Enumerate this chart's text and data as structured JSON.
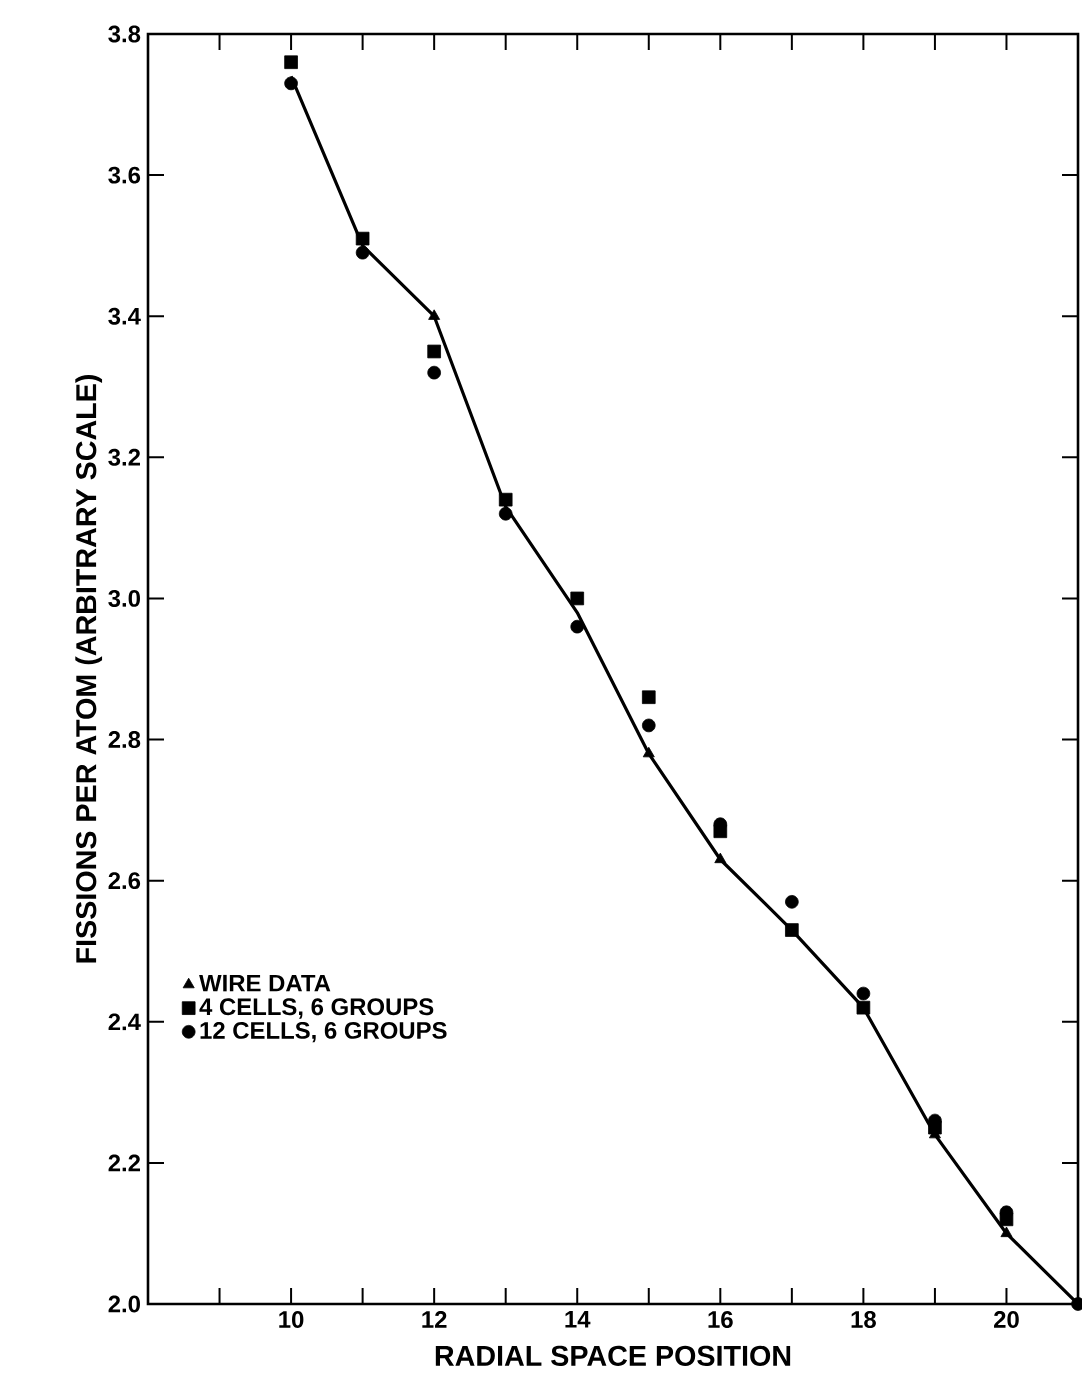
{
  "chart_data": {
    "type": "scatter",
    "xlabel": "RADIAL SPACE POSITION",
    "ylabel": "FISSIONS PER ATOM (ARBITRARY SCALE)",
    "xlim": [
      8,
      21
    ],
    "ylim": [
      2.0,
      3.8
    ],
    "xticks": [
      {
        "value": 9,
        "label": null
      },
      10,
      {
        "value": 11,
        "label": null
      },
      12,
      {
        "value": 13,
        "label": null
      },
      14,
      {
        "value": 15,
        "label": null
      },
      16,
      {
        "value": 17,
        "label": null
      },
      18,
      {
        "value": 19,
        "label": null
      },
      20
    ],
    "yticks": [
      {
        "value": 2,
        "label": "2.0"
      },
      2.2,
      2.4,
      2.6,
      2.8,
      {
        "value": 3,
        "label": "3.0"
      },
      3.2,
      3.4,
      3.6,
      3.8
    ],
    "grid": false,
    "legend": "bottom left",
    "series": [
      {
        "type": "line",
        "color": "#000000",
        "marker": "none",
        "line_style": "solid",
        "x": [
          10,
          11,
          12,
          13,
          14,
          15,
          16,
          17,
          18,
          19,
          20,
          21
        ],
        "values": [
          3.74,
          3.5,
          3.4,
          3.13,
          2.98,
          2.78,
          2.63,
          2.53,
          2.42,
          2.24,
          2.1,
          2.0
        ]
      },
      {
        "name": "WIRE DATA",
        "color": "#000000",
        "marker": "triangle",
        "x": [
          12,
          15,
          16,
          19,
          20
        ],
        "values": [
          3.4,
          2.78,
          2.63,
          2.24,
          2.1
        ]
      },
      {
        "name": "4 CELLS, 6 GROUPS",
        "color": "#000000",
        "marker": "square",
        "x": [
          10,
          11,
          12,
          13,
          14,
          15,
          16,
          17,
          18,
          19,
          20
        ],
        "values": [
          3.76,
          3.51,
          3.35,
          3.14,
          3.0,
          2.86,
          2.67,
          2.53,
          2.42,
          2.25,
          2.12
        ]
      },
      {
        "name": "12 CELLS, 6 GROUPS",
        "color": "#000000",
        "marker": "circle",
        "x": [
          10,
          11,
          12,
          13,
          14,
          15,
          16,
          17,
          18,
          19,
          20,
          21
        ],
        "values": [
          3.73,
          3.49,
          3.32,
          3.12,
          2.96,
          2.82,
          2.68,
          2.57,
          2.44,
          2.26,
          2.13,
          2.0
        ]
      }
    ]
  }
}
